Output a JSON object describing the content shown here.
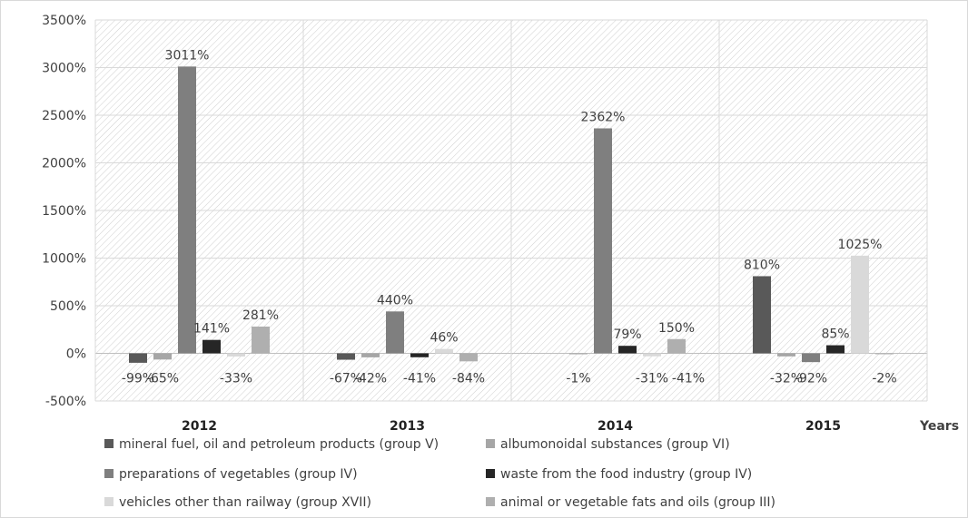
{
  "chart_data": {
    "type": "bar",
    "title": "",
    "xlabel": "Years",
    "ylabel": "",
    "categories": [
      "2012",
      "2013",
      "2014",
      "2015"
    ],
    "ylim": [
      -500,
      3500
    ],
    "yticks": [
      -500,
      0,
      500,
      1000,
      1500,
      2000,
      2500,
      3000,
      3500
    ],
    "ytick_labels": [
      "-500%",
      "0%",
      "500%",
      "1000%",
      "1500%",
      "2000%",
      "2500%",
      "3000%",
      "3500%"
    ],
    "value_suffix": "%",
    "grid": true,
    "legend_position": "bottom",
    "series": [
      {
        "name": "mineral fuel, oil and petroleum products (group V)",
        "color": "#595959",
        "values": [
          -99,
          -67,
          0,
          810
        ],
        "labels": [
          "-99%",
          "-67%",
          "",
          "810%"
        ]
      },
      {
        "name": "albumonoidal substances (group VI)",
        "color": "#a6a6a6",
        "values": [
          -65,
          -42,
          -1,
          -32
        ],
        "labels": [
          "-65%",
          "-42%",
          "-1%",
          "-32%"
        ]
      },
      {
        "name": "preparations of vegetables (group IV)",
        "color": "#7f7f7f",
        "values": [
          3011,
          440,
          2362,
          -92
        ],
        "labels": [
          "3011%",
          "440%",
          "2362%",
          "-92%"
        ]
      },
      {
        "name": "waste from the food industry (group IV)",
        "color": "#262626",
        "values": [
          141,
          -41,
          79,
          85
        ],
        "labels": [
          "141%",
          "-41%",
          "79%",
          "85%"
        ]
      },
      {
        "name": "vehicles other than railway (group XVII)",
        "color": "#d9d9d9",
        "values": [
          -33,
          46,
          -31,
          1025
        ],
        "labels": [
          "-33%",
          "46%",
          "-31%",
          "1025%"
        ]
      },
      {
        "name": "animal or vegetable fats and oils (group III)",
        "color": "#afafaf",
        "values": [
          281,
          -84,
          150,
          -2
        ],
        "labels": [
          "281%",
          "-84%",
          "150%",
          "-2%"
        ]
      }
    ],
    "extra_labels": [
      {
        "category": 2,
        "text": "-41%"
      }
    ]
  }
}
